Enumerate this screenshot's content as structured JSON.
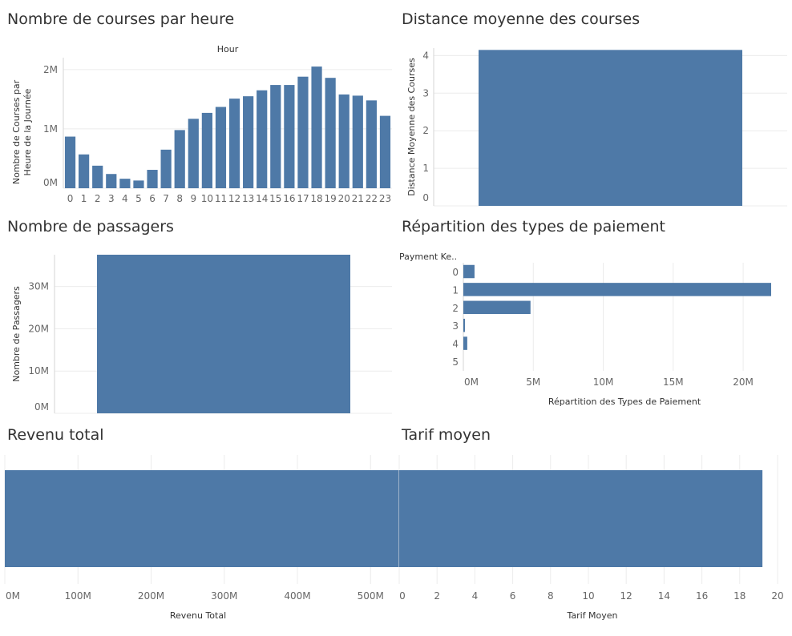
{
  "titles": {
    "hourly": "Nombre de courses par heure",
    "distance": "Distance moyenne des courses",
    "passengers": "Nombre de passagers",
    "payment": "Répartition des types de paiement",
    "revenue": "Revenu total",
    "fare": "Tarif moyen"
  },
  "colors": {
    "bar": "#4e79a7"
  },
  "chart_data": [
    {
      "id": "hourly",
      "type": "bar",
      "xlabel": "Hour",
      "ylabel_lines": [
        "Nombre de Courses par",
        "Heure de la Journée"
      ],
      "categories": [
        "0",
        "1",
        "2",
        "3",
        "4",
        "5",
        "6",
        "7",
        "8",
        "9",
        "10",
        "11",
        "12",
        "13",
        "14",
        "15",
        "16",
        "17",
        "18",
        "19",
        "20",
        "21",
        "22",
        "23"
      ],
      "values": [
        870000,
        570000,
        380000,
        240000,
        160000,
        130000,
        310000,
        650000,
        980000,
        1170000,
        1270000,
        1370000,
        1510000,
        1550000,
        1650000,
        1740000,
        1740000,
        1880000,
        2050000,
        1860000,
        1580000,
        1560000,
        1480000,
        1220000
      ],
      "ylim": [
        0,
        2200000
      ],
      "yticks": [
        0,
        1000000,
        2000000
      ],
      "yticklabels": [
        "0M",
        "1M",
        "2M"
      ],
      "grid": true
    },
    {
      "id": "distance",
      "type": "bar",
      "ylabel": "Distance Moyenne des Courses",
      "values": [
        4.15
      ],
      "ylim": [
        0,
        4.2
      ],
      "yticks": [
        0,
        1,
        2,
        3,
        4
      ],
      "yticklabels": [
        "0",
        "1",
        "2",
        "3",
        "4"
      ],
      "grid": true
    },
    {
      "id": "passengers",
      "type": "bar",
      "ylabel": "Nombre de Passagers",
      "values": [
        37500000
      ],
      "ylim": [
        0,
        37500000
      ],
      "yticks": [
        0,
        10000000,
        20000000,
        30000000
      ],
      "yticklabels": [
        "0M",
        "10M",
        "20M",
        "30M"
      ],
      "grid": true
    },
    {
      "id": "payment",
      "type": "bar",
      "orientation": "horizontal",
      "category_header": "Payment Ke..",
      "xlabel": "Répartition des Types de Paiement",
      "categories": [
        "0",
        "1",
        "2",
        "3",
        "4",
        "5"
      ],
      "values": [
        800000,
        22000000,
        4800000,
        100000,
        280000,
        0
      ],
      "xlim": [
        0,
        22000000
      ],
      "xticks": [
        0,
        5000000,
        10000000,
        15000000,
        20000000
      ],
      "xticklabels": [
        "0M",
        "5M",
        "10M",
        "15M",
        "20M"
      ],
      "grid": true
    },
    {
      "id": "revenue",
      "type": "bar",
      "orientation": "horizontal",
      "xlabel": "Revenu Total",
      "values": [
        542000000
      ],
      "xlim": [
        0,
        560000000
      ],
      "xticks": [
        0,
        100000000,
        200000000,
        300000000,
        400000000,
        500000000
      ],
      "xticklabels": [
        "0M",
        "100M",
        "200M",
        "300M",
        "400M",
        "500M"
      ],
      "grid": true
    },
    {
      "id": "fare",
      "type": "bar",
      "orientation": "horizontal",
      "xlabel": "Tarif Moyen",
      "values": [
        19.2
      ],
      "xlim": [
        0,
        20
      ],
      "xticks": [
        0,
        2,
        4,
        6,
        8,
        10,
        12,
        14,
        16,
        18,
        20
      ],
      "xticklabels": [
        "0",
        "2",
        "4",
        "6",
        "8",
        "10",
        "12",
        "14",
        "16",
        "18",
        "20"
      ],
      "grid": true
    }
  ]
}
